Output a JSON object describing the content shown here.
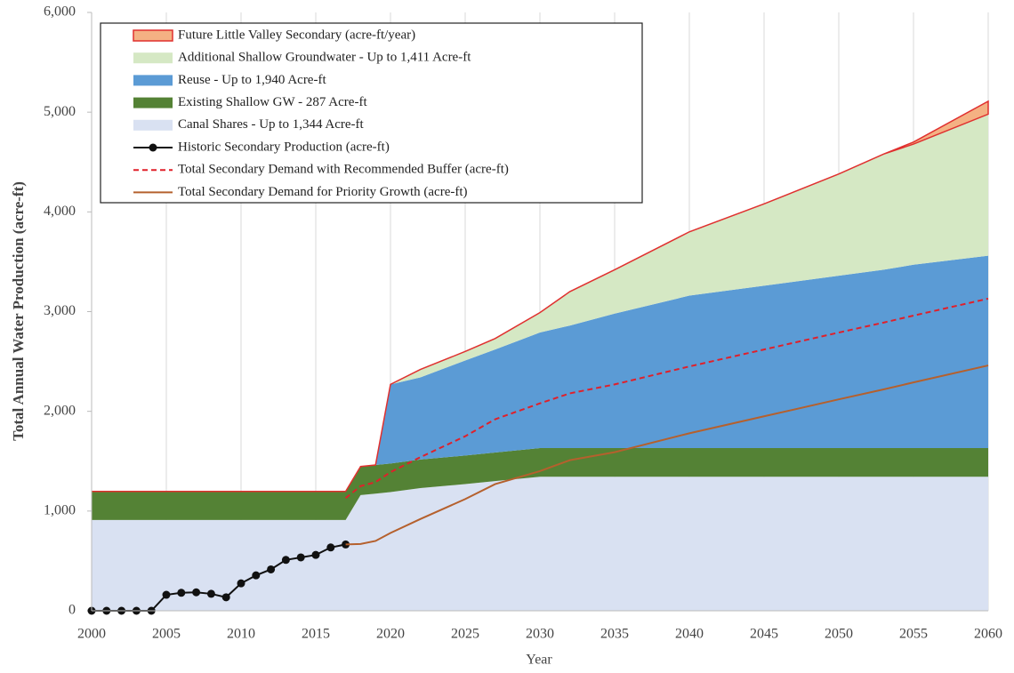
{
  "chart_data": {
    "type": "stacked-area-line",
    "x_label": "Year",
    "y_label": "Total Annual Water Production (acre-ft)",
    "x": [
      2000,
      2001,
      2002,
      2003,
      2004,
      2005,
      2006,
      2007,
      2008,
      2009,
      2010,
      2011,
      2012,
      2013,
      2014,
      2015,
      2016,
      2017,
      2018,
      2019,
      2020,
      2022,
      2025,
      2027,
      2030,
      2032,
      2035,
      2040,
      2045,
      2050,
      2053,
      2055,
      2060
    ],
    "xlim": [
      2000,
      2060
    ],
    "xticks": [
      2000,
      2005,
      2010,
      2015,
      2020,
      2025,
      2030,
      2035,
      2040,
      2045,
      2050,
      2055,
      2060
    ],
    "ylim": [
      0,
      6000
    ],
    "yticks": [
      0,
      {
        "value": 1000,
        "label": "1,000"
      },
      {
        "value": 2000,
        "label": "2,000"
      },
      {
        "value": 3000,
        "label": "3,000"
      },
      {
        "value": 4000,
        "label": "4,000"
      },
      {
        "value": 5000,
        "label": "5,000"
      },
      {
        "value": 6000,
        "label": "6,000"
      }
    ],
    "grid": "x",
    "series": [
      {
        "name": "Future Little Valley Secondary (acre-ft/year)",
        "kind": "area",
        "color": "#f4b183",
        "stroke": "#e0302f",
        "values": [
          0,
          0,
          0,
          0,
          0,
          0,
          0,
          0,
          0,
          0,
          0,
          0,
          0,
          0,
          0,
          0,
          0,
          0,
          0,
          0,
          0,
          0,
          0,
          0,
          0,
          0,
          0,
          0,
          0,
          0,
          0,
          20,
          130
        ]
      },
      {
        "name": "Additional Shallow Groundwater - Up to 1,411 Acre-ft",
        "kind": "area",
        "color": "#d5e8c4",
        "values": [
          0,
          0,
          0,
          0,
          0,
          0,
          0,
          0,
          0,
          0,
          0,
          0,
          0,
          0,
          0,
          0,
          0,
          0,
          0,
          0,
          0,
          80,
          90,
          110,
          200,
          340,
          440,
          640,
          820,
          1020,
          1160,
          1210,
          1420
        ]
      },
      {
        "name": "Reuse - Up to 1,940 Acre-ft",
        "kind": "area",
        "color": "#5b9bd5",
        "values": [
          0,
          0,
          0,
          0,
          0,
          0,
          0,
          0,
          0,
          0,
          0,
          0,
          0,
          0,
          0,
          0,
          0,
          0,
          0,
          0,
          793,
          823,
          953,
          1033,
          1159,
          1229,
          1349,
          1529,
          1629,
          1729,
          1789,
          1839,
          1929
        ]
      },
      {
        "name": "Existing Shallow GW - 287 Acre-ft",
        "kind": "area",
        "color": "#548235",
        "values": [
          287,
          287,
          287,
          287,
          287,
          287,
          287,
          287,
          287,
          287,
          287,
          287,
          287,
          287,
          287,
          287,
          287,
          287,
          287,
          287,
          287,
          287,
          287,
          287,
          287,
          287,
          287,
          287,
          287,
          287,
          287,
          287,
          287
        ]
      },
      {
        "name": "Canal Shares - Up to 1,344 Acre-ft",
        "kind": "area",
        "color": "#d9e1f2",
        "values": [
          910,
          910,
          910,
          910,
          910,
          910,
          910,
          910,
          910,
          910,
          910,
          910,
          910,
          910,
          910,
          910,
          910,
          910,
          1160,
          1175,
          1190,
          1230,
          1270,
          1300,
          1344,
          1344,
          1344,
          1344,
          1344,
          1344,
          1344,
          1344,
          1344
        ]
      },
      {
        "name": "Historic Secondary Production (acre-ft)",
        "kind": "line",
        "color": "#111111",
        "marker": true,
        "values": [
          0,
          0,
          0,
          0,
          0,
          160,
          180,
          185,
          170,
          135,
          275,
          355,
          415,
          510,
          535,
          560,
          635,
          665,
          null,
          null,
          null,
          null,
          null,
          null,
          null,
          null,
          null,
          null,
          null,
          null,
          null,
          null,
          null
        ]
      },
      {
        "name": "Total Secondary Demand with Recommended Buffer (acre-ft)",
        "kind": "line",
        "color": "#e0202a",
        "dashed": true,
        "values": [
          null,
          null,
          null,
          null,
          null,
          null,
          null,
          null,
          null,
          null,
          null,
          null,
          null,
          null,
          null,
          null,
          null,
          1130,
          1250,
          1290,
          1390,
          1540,
          1750,
          1920,
          2080,
          2180,
          2270,
          2450,
          2620,
          2790,
          2890,
          2960,
          3130
        ]
      },
      {
        "name": "Total Secondary Demand for Priority Growth (acre-ft)",
        "kind": "line",
        "color": "#b5602d",
        "values": [
          null,
          null,
          null,
          null,
          null,
          null,
          null,
          null,
          null,
          null,
          null,
          null,
          null,
          null,
          null,
          null,
          null,
          665,
          670,
          700,
          780,
          920,
          1120,
          1270,
          1400,
          1510,
          1590,
          1780,
          1950,
          2120,
          2220,
          2290,
          2460
        ]
      }
    ]
  }
}
